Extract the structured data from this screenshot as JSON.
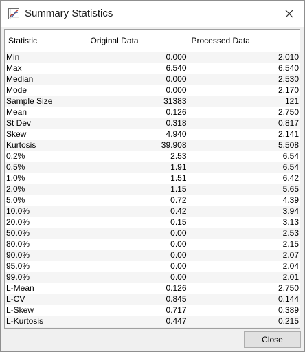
{
  "window": {
    "title": "Summary Statistics",
    "icon": "chart-icon",
    "close_icon": "close-icon"
  },
  "table": {
    "columns": [
      "Statistic",
      "Original Data",
      "Processed Data"
    ],
    "rows": [
      [
        "Min",
        "0.000",
        "2.010"
      ],
      [
        "Max",
        "6.540",
        "6.540"
      ],
      [
        "Median",
        "0.000",
        "2.530"
      ],
      [
        "Mode",
        "0.000",
        "2.170"
      ],
      [
        "Sample Size",
        "31383",
        "121"
      ],
      [
        "Mean",
        "0.126",
        "2.750"
      ],
      [
        "St Dev",
        "0.318",
        "0.817"
      ],
      [
        "Skew",
        "4.940",
        "2.141"
      ],
      [
        "Kurtosis",
        "39.908",
        "5.508"
      ],
      [
        "0.2%",
        "2.53",
        "6.54"
      ],
      [
        "0.5%",
        "1.91",
        "6.54"
      ],
      [
        "1.0%",
        "1.51",
        "6.42"
      ],
      [
        "2.0%",
        "1.15",
        "5.65"
      ],
      [
        "5.0%",
        "0.72",
        "4.39"
      ],
      [
        "10.0%",
        "0.42",
        "3.94"
      ],
      [
        "20.0%",
        "0.15",
        "3.13"
      ],
      [
        "50.0%",
        "0.00",
        "2.53"
      ],
      [
        "80.0%",
        "0.00",
        "2.15"
      ],
      [
        "90.0%",
        "0.00",
        "2.07"
      ],
      [
        "95.0%",
        "0.00",
        "2.04"
      ],
      [
        "99.0%",
        "0.00",
        "2.01"
      ],
      [
        "L-Mean",
        "0.126",
        "2.750"
      ],
      [
        "L-CV",
        "0.845",
        "0.144"
      ],
      [
        "L-Skew",
        "0.717",
        "0.389"
      ],
      [
        "L-Kurtosis",
        "0.447",
        "0.215"
      ]
    ]
  },
  "footer": {
    "close_label": "Close"
  }
}
